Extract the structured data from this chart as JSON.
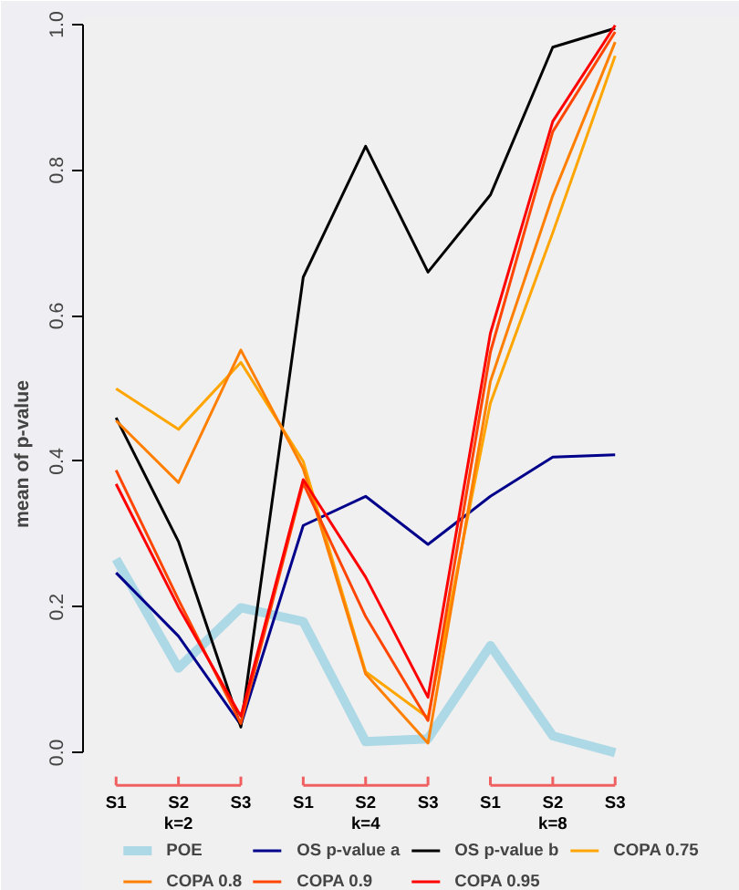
{
  "chart_data": {
    "type": "line",
    "ylabel": "mean of p-value",
    "categories": [
      "S1",
      "S2",
      "S3",
      "S1",
      "S2",
      "S3",
      "S1",
      "S2",
      "S3"
    ],
    "annotations": [
      "k=2",
      "k=4",
      "k=8"
    ],
    "ylim": [
      0,
      1
    ],
    "yticks": [
      {
        "value": 0,
        "label": "0.0"
      },
      0.2,
      0.4,
      0.6,
      0.8,
      {
        "value": 1,
        "label": "1.0"
      }
    ],
    "grid": false,
    "legend": "bottom",
    "marker": "none",
    "line_style": "solid",
    "series": [
      {
        "name": "POE",
        "color": "#add8e6",
        "values": [
          0.266,
          0.116,
          0.199,
          0.18,
          0.015,
          0.019,
          0.147,
          0.023,
          0.0
        ]
      },
      {
        "name": "OS p-value a",
        "color": "#00008b",
        "values": [
          0.247,
          0.16,
          0.038,
          0.312,
          0.352,
          0.286,
          0.352,
          0.406,
          0.409
        ]
      },
      {
        "name": "OS p-value b",
        "color": "#000000",
        "values": [
          0.46,
          0.29,
          0.035,
          0.653,
          0.833,
          0.66,
          0.766,
          0.969,
          0.995
        ]
      },
      {
        "name": "COPA 0.75",
        "color": "#ffa500",
        "values": [
          0.5,
          0.444,
          0.536,
          0.4,
          0.111,
          0.048,
          0.48,
          0.714,
          0.957
        ]
      },
      {
        "name": "COPA 0.8",
        "color": "#ff7f00",
        "values": [
          0.456,
          0.371,
          0.553,
          0.39,
          0.108,
          0.013,
          0.51,
          0.765,
          0.976
        ]
      },
      {
        "name": "COPA 0.9",
        "color": "#ff4500",
        "values": [
          0.388,
          0.21,
          0.04,
          0.37,
          0.187,
          0.044,
          0.55,
          0.853,
          0.99
        ]
      },
      {
        "name": "COPA 0.95",
        "color": "#ff0000",
        "values": [
          0.369,
          0.2,
          0.05,
          0.375,
          0.241,
          0.076,
          0.576,
          0.867,
          0.999
        ]
      }
    ]
  }
}
